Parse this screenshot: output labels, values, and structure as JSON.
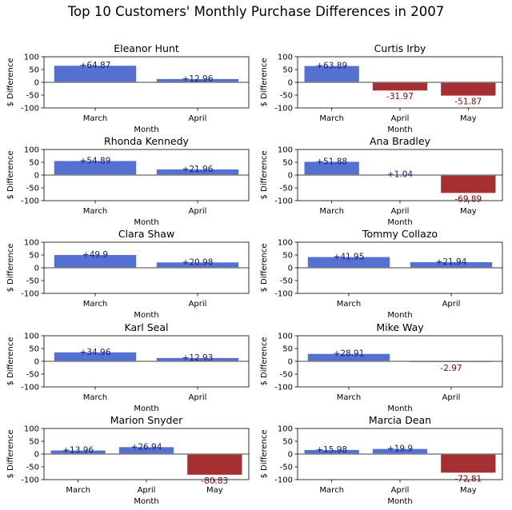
{
  "title": "Top 10 Customers' Monthly Purchase Differences in 2007",
  "colors": {
    "positive_bar": "#5470d0",
    "negative_bar": "#a52f31",
    "positive_text": "#1a1a6e",
    "negative_text": "#8b0000",
    "zero_line": "#808080"
  },
  "chart_data": [
    {
      "type": "bar",
      "title": "Eleanor Hunt",
      "xlabel": "Month",
      "ylabel": "$ Difference",
      "ylim": [
        -100,
        100
      ],
      "yticks": [
        100,
        50,
        0,
        -50,
        -100
      ],
      "categories": [
        "March",
        "April"
      ],
      "values": [
        64.87,
        12.96
      ],
      "labels": [
        "+64.87",
        "+12.96"
      ]
    },
    {
      "type": "bar",
      "title": "Curtis Irby",
      "xlabel": "Month",
      "ylabel": "$ Difference",
      "ylim": [
        -100,
        100
      ],
      "yticks": [
        100,
        50,
        0,
        -50,
        -100
      ],
      "categories": [
        "March",
        "April",
        "May"
      ],
      "values": [
        63.89,
        -31.97,
        -51.87
      ],
      "labels": [
        "+63.89",
        "-31.97",
        "-51.87"
      ]
    },
    {
      "type": "bar",
      "title": "Rhonda Kennedy",
      "xlabel": "Month",
      "ylabel": "$ Difference",
      "ylim": [
        -100,
        100
      ],
      "yticks": [
        100,
        50,
        0,
        -50,
        -100
      ],
      "categories": [
        "March",
        "April"
      ],
      "values": [
        54.89,
        21.96
      ],
      "labels": [
        "+54.89",
        "+21.96"
      ]
    },
    {
      "type": "bar",
      "title": "Ana Bradley",
      "xlabel": "Month",
      "ylabel": "$ Difference",
      "ylim": [
        -100,
        100
      ],
      "yticks": [
        100,
        50,
        0,
        -50,
        -100
      ],
      "categories": [
        "March",
        "April",
        "May"
      ],
      "values": [
        51.88,
        1.04,
        -69.89
      ],
      "labels": [
        "+51.88",
        "+1.04",
        "-69.89"
      ]
    },
    {
      "type": "bar",
      "title": "Clara Shaw",
      "xlabel": "Month",
      "ylabel": "$ Difference",
      "ylim": [
        -100,
        100
      ],
      "yticks": [
        100,
        50,
        0,
        -50,
        -100
      ],
      "categories": [
        "March",
        "April"
      ],
      "values": [
        49.9,
        20.98
      ],
      "labels": [
        "+49.9",
        "+20.98"
      ]
    },
    {
      "type": "bar",
      "title": "Tommy Collazo",
      "xlabel": "Month",
      "ylabel": "$ Difference",
      "ylim": [
        -100,
        100
      ],
      "yticks": [
        100,
        50,
        0,
        -50,
        -100
      ],
      "categories": [
        "March",
        "April"
      ],
      "values": [
        41.95,
        21.94
      ],
      "labels": [
        "+41.95",
        "+21.94"
      ]
    },
    {
      "type": "bar",
      "title": "Karl Seal",
      "xlabel": "Month",
      "ylabel": "$ Difference",
      "ylim": [
        -100,
        100
      ],
      "yticks": [
        100,
        50,
        0,
        -50,
        -100
      ],
      "categories": [
        "March",
        "April"
      ],
      "values": [
        34.96,
        12.93
      ],
      "labels": [
        "+34.96",
        "+12.93"
      ]
    },
    {
      "type": "bar",
      "title": "Mike Way",
      "xlabel": "Month",
      "ylabel": "$ Difference",
      "ylim": [
        -100,
        100
      ],
      "yticks": [
        100,
        50,
        0,
        -50,
        -100
      ],
      "categories": [
        "March",
        "April"
      ],
      "values": [
        28.91,
        -2.97
      ],
      "labels": [
        "+28.91",
        "-2.97"
      ]
    },
    {
      "type": "bar",
      "title": "Marion Snyder",
      "xlabel": "Month",
      "ylabel": "$ Difference",
      "ylim": [
        -100,
        100
      ],
      "yticks": [
        100,
        50,
        0,
        -50,
        -100
      ],
      "categories": [
        "March",
        "April",
        "May"
      ],
      "values": [
        13.96,
        26.94,
        -80.83
      ],
      "labels": [
        "+13.96",
        "+26.94",
        "-80.83"
      ]
    },
    {
      "type": "bar",
      "title": "Marcia Dean",
      "xlabel": "Month",
      "ylabel": "$ Difference",
      "ylim": [
        -100,
        100
      ],
      "yticks": [
        100,
        50,
        0,
        -50,
        -100
      ],
      "categories": [
        "March",
        "April",
        "May"
      ],
      "values": [
        15.98,
        19.9,
        -72.81
      ],
      "labels": [
        "+15.98",
        "+19.9",
        "-72.81"
      ]
    }
  ]
}
